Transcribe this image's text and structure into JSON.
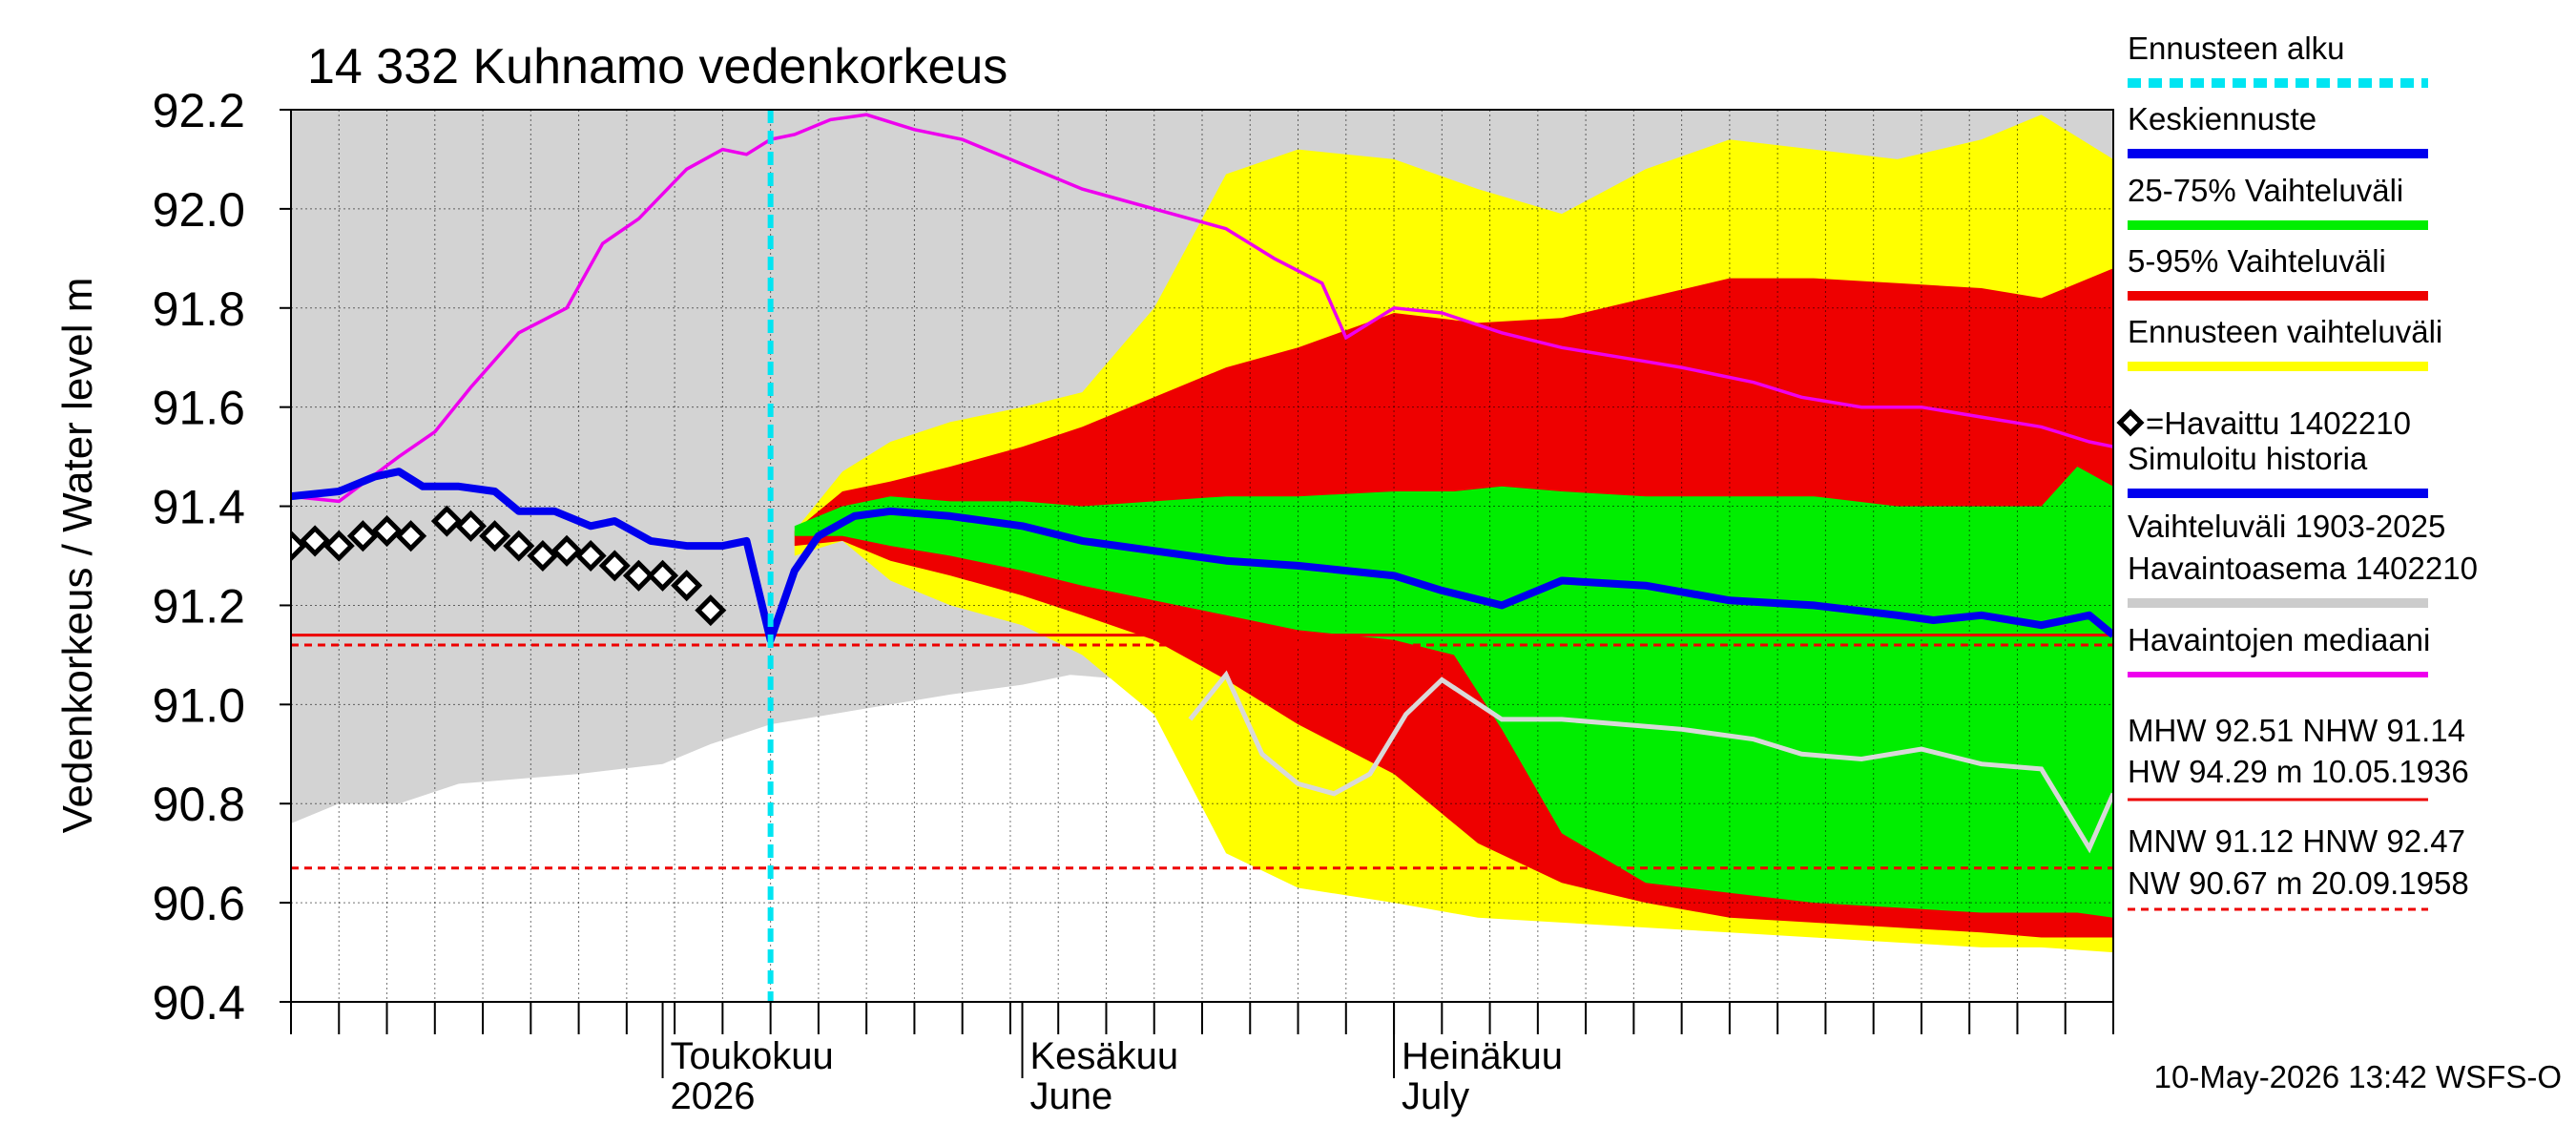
{
  "chart_data": {
    "type": "area",
    "title": "14 332 Kuhnamo vedenkorkeus",
    "ylabel": "Vedenkorkeus / Water level   m",
    "ylim": [
      90.4,
      92.2
    ],
    "yticks": [
      "90.4",
      "90.6",
      "90.8",
      "91.0",
      "91.2",
      "91.4",
      "91.6",
      "91.8",
      "92.0",
      "92.2"
    ],
    "xlim": [
      "2026-03-01",
      "2026-07-31"
    ],
    "grid": true,
    "month_labels": [
      {
        "date": "2026-04-01",
        "line1": "Toukokuu",
        "line2": "2026"
      },
      {
        "date": "2026-05-01",
        "line1": "Kesäkuu",
        "line2": "June"
      },
      {
        "date": "2026-06-01",
        "line1": "Heinäkuu",
        "line2": "July"
      }
    ],
    "forecast_start": "2026-04-10",
    "legend": [
      {
        "label": "Ennusteen alku",
        "color": "#00e5f2",
        "style": "dashed"
      },
      {
        "label": "Keskiennuste",
        "color": "#0000ee",
        "style": "solid"
      },
      {
        "label": "25-75% Vaihteluväli",
        "color": "#00ee00",
        "style": "solid"
      },
      {
        "label": "5-95% Vaihteluväli",
        "color": "#ee0000",
        "style": "solid"
      },
      {
        "label": "Ennusteen vaihteluväli",
        "color": "#ffff00",
        "style": "solid"
      },
      {
        "label": "=Havaittu 1402210",
        "color": "#000000",
        "style": "marker"
      },
      {
        "label": "Simuloitu historia",
        "color": "#0000ee",
        "style": "solid"
      },
      {
        "label": "Vaihteluväli 1903-2025",
        "color": "",
        "style": "none"
      },
      {
        "label": "Havaintoasema 1402210",
        "color": "#cccccc",
        "style": "solid"
      },
      {
        "label": "Havaintojen mediaani",
        "color": "#ee00ee",
        "style": "solid"
      }
    ],
    "stats": {
      "line1": "MHW  92.51 NHW  91.14",
      "line2": "HW  94.29 m 10.05.1936",
      "line3": "MNW  91.12 HNW  92.47",
      "line4": "NW  90.67 m 20.09.1958"
    },
    "reference_lines": [
      {
        "name": "NHW",
        "value": 91.14,
        "color": "#ee0000",
        "style": "solid"
      },
      {
        "name": "MNW",
        "value": 91.12,
        "color": "#ee0000",
        "style": "dashed"
      },
      {
        "name": "NW",
        "value": 90.67,
        "color": "#ee0000",
        "style": "dashed"
      }
    ],
    "history_range": {
      "x": [
        "2026-03-01",
        "2026-03-05",
        "2026-03-10",
        "2026-03-15",
        "2026-03-20",
        "2026-03-25",
        "2026-04-01",
        "2026-04-05",
        "2026-04-10",
        "2026-04-15",
        "2026-04-20",
        "2026-04-25",
        "2026-05-01",
        "2026-05-05",
        "2026-05-10",
        "2026-05-15",
        "2026-05-20",
        "2026-05-25",
        "2026-06-01",
        "2026-06-05",
        "2026-06-10",
        "2026-06-15",
        "2026-06-20",
        "2026-06-25",
        "2026-07-01",
        "2026-07-05",
        "2026-07-10",
        "2026-07-15",
        "2026-07-20",
        "2026-07-25",
        "2026-07-31"
      ],
      "upper": [
        92.2,
        92.2,
        92.2,
        92.2,
        92.2,
        92.2,
        92.2,
        92.2,
        92.2,
        92.2,
        92.2,
        92.2,
        92.2,
        92.2,
        92.2,
        92.2,
        92.2,
        92.2,
        92.2,
        92.2,
        92.2,
        92.2,
        92.2,
        92.2,
        92.2,
        92.2,
        92.2,
        92.2,
        92.2,
        92.2,
        92.2
      ],
      "lower": [
        90.76,
        90.8,
        90.8,
        90.84,
        90.85,
        90.86,
        90.88,
        90.92,
        90.96,
        90.98,
        91.0,
        91.02,
        91.04,
        91.06,
        91.05,
        91.06,
        91.08,
        91.06,
        91.05,
        91.02,
        90.99,
        90.97,
        90.95,
        90.94,
        90.93,
        90.92,
        90.91,
        90.9,
        90.9,
        90.89,
        90.88
      ]
    },
    "station_median_gray": {
      "x": [
        "2026-05-15",
        "2026-05-18",
        "2026-05-21",
        "2026-05-24",
        "2026-05-27",
        "2026-05-30",
        "2026-06-02",
        "2026-06-05",
        "2026-06-10",
        "2026-06-15",
        "2026-06-20",
        "2026-06-25",
        "2026-07-01",
        "2026-07-05",
        "2026-07-10",
        "2026-07-15",
        "2026-07-20",
        "2026-07-25",
        "2026-07-29",
        "2026-07-31"
      ],
      "values": [
        90.97,
        91.06,
        90.9,
        90.84,
        90.82,
        90.86,
        90.98,
        91.05,
        90.97,
        90.97,
        90.96,
        90.95,
        90.93,
        90.9,
        90.89,
        90.91,
        90.88,
        90.87,
        90.71,
        90.82
      ]
    },
    "band_full": {
      "x": [
        "2026-04-12",
        "2026-04-16",
        "2026-04-20",
        "2026-04-25",
        "2026-05-01",
        "2026-05-06",
        "2026-05-12",
        "2026-05-18",
        "2026-05-24",
        "2026-06-01",
        "2026-06-08",
        "2026-06-15",
        "2026-06-22",
        "2026-06-29",
        "2026-07-06",
        "2026-07-13",
        "2026-07-20",
        "2026-07-25",
        "2026-07-31"
      ],
      "upper": [
        91.35,
        91.47,
        91.53,
        91.57,
        91.6,
        91.63,
        91.8,
        92.07,
        92.12,
        92.1,
        92.04,
        91.99,
        92.08,
        92.14,
        92.12,
        92.1,
        92.14,
        92.19,
        92.1
      ],
      "lower": [
        91.3,
        91.33,
        91.25,
        91.2,
        91.16,
        91.1,
        90.98,
        90.7,
        90.63,
        90.6,
        90.57,
        90.56,
        90.55,
        90.54,
        90.53,
        90.52,
        90.51,
        90.51,
        90.5
      ]
    },
    "band_5_95": {
      "x": [
        "2026-04-12",
        "2026-04-16",
        "2026-04-20",
        "2026-04-25",
        "2026-05-01",
        "2026-05-06",
        "2026-05-12",
        "2026-05-18",
        "2026-05-24",
        "2026-06-01",
        "2026-06-08",
        "2026-06-15",
        "2026-06-22",
        "2026-06-29",
        "2026-07-06",
        "2026-07-13",
        "2026-07-20",
        "2026-07-25",
        "2026-07-31"
      ],
      "upper": [
        91.35,
        91.43,
        91.45,
        91.48,
        91.52,
        91.56,
        91.62,
        91.68,
        91.72,
        91.79,
        91.77,
        91.78,
        91.82,
        91.86,
        91.86,
        91.85,
        91.84,
        91.82,
        91.88
      ],
      "lower": [
        91.32,
        91.33,
        91.29,
        91.26,
        91.22,
        91.18,
        91.13,
        91.05,
        90.96,
        90.86,
        90.72,
        90.64,
        90.6,
        90.57,
        90.56,
        90.55,
        90.54,
        90.53,
        90.53
      ]
    },
    "band_25_75": {
      "x": [
        "2026-04-12",
        "2026-04-16",
        "2026-04-20",
        "2026-04-25",
        "2026-05-01",
        "2026-05-06",
        "2026-05-12",
        "2026-05-18",
        "2026-05-24",
        "2026-06-01",
        "2026-06-06",
        "2026-06-10",
        "2026-06-15",
        "2026-06-22",
        "2026-06-29",
        "2026-07-06",
        "2026-07-13",
        "2026-07-20",
        "2026-07-25",
        "2026-07-28",
        "2026-07-31"
      ],
      "upper": [
        91.36,
        91.4,
        91.42,
        91.41,
        91.41,
        91.4,
        91.41,
        91.42,
        91.42,
        91.43,
        91.43,
        91.44,
        91.43,
        91.42,
        91.42,
        91.42,
        91.4,
        91.4,
        91.4,
        91.48,
        91.44
      ],
      "lower": [
        91.34,
        91.34,
        91.32,
        91.3,
        91.27,
        91.24,
        91.21,
        91.18,
        91.15,
        91.13,
        91.1,
        90.95,
        90.74,
        90.64,
        90.62,
        90.6,
        90.59,
        90.58,
        90.58,
        90.58,
        90.57
      ]
    },
    "median_forecast": {
      "x": [
        "2026-03-01",
        "2026-03-05",
        "2026-03-08",
        "2026-03-10",
        "2026-03-12",
        "2026-03-15",
        "2026-03-18",
        "2026-03-20",
        "2026-03-23",
        "2026-03-26",
        "2026-03-28",
        "2026-03-31",
        "2026-04-03",
        "2026-04-06",
        "2026-04-08",
        "2026-04-10",
        "2026-04-12",
        "2026-04-14",
        "2026-04-17",
        "2026-04-20",
        "2026-04-25",
        "2026-05-01",
        "2026-05-06",
        "2026-05-12",
        "2026-05-18",
        "2026-05-24",
        "2026-06-01",
        "2026-06-05",
        "2026-06-10",
        "2026-06-15",
        "2026-06-22",
        "2026-06-29",
        "2026-07-06",
        "2026-07-13",
        "2026-07-16",
        "2026-07-20",
        "2026-07-25",
        "2026-07-29",
        "2026-07-31"
      ],
      "values": [
        91.42,
        91.43,
        91.46,
        91.47,
        91.44,
        91.44,
        91.43,
        91.39,
        91.39,
        91.36,
        91.37,
        91.33,
        91.32,
        91.32,
        91.33,
        91.13,
        91.27,
        91.34,
        91.38,
        91.39,
        91.38,
        91.36,
        91.33,
        91.31,
        91.29,
        91.28,
        91.26,
        91.23,
        91.2,
        91.25,
        91.24,
        91.21,
        91.2,
        91.18,
        91.17,
        91.18,
        91.16,
        91.18,
        91.14
      ]
    },
    "observation_median": {
      "x": [
        "2026-03-01",
        "2026-03-05",
        "2026-03-10",
        "2026-03-13",
        "2026-03-16",
        "2026-03-20",
        "2026-03-24",
        "2026-03-27",
        "2026-03-30",
        "2026-04-01",
        "2026-04-03",
        "2026-04-06",
        "2026-04-08",
        "2026-04-10",
        "2026-04-12",
        "2026-04-15",
        "2026-04-18",
        "2026-04-22",
        "2026-04-26",
        "2026-05-01",
        "2026-05-06",
        "2026-05-12",
        "2026-05-18",
        "2026-05-22",
        "2026-05-26",
        "2026-05-28",
        "2026-06-01",
        "2026-06-05",
        "2026-06-10",
        "2026-06-15",
        "2026-06-20",
        "2026-06-25",
        "2026-07-01",
        "2026-07-05",
        "2026-07-10",
        "2026-07-15",
        "2026-07-20",
        "2026-07-25",
        "2026-07-29",
        "2026-07-31"
      ],
      "values": [
        91.42,
        91.41,
        91.5,
        91.55,
        91.64,
        91.75,
        91.8,
        91.93,
        91.98,
        92.03,
        92.08,
        92.12,
        92.11,
        92.14,
        92.15,
        92.18,
        92.19,
        92.16,
        92.14,
        92.09,
        92.04,
        92.0,
        91.96,
        91.9,
        91.85,
        91.74,
        91.8,
        91.79,
        91.75,
        91.72,
        91.7,
        91.68,
        91.65,
        91.62,
        91.6,
        91.6,
        91.58,
        91.56,
        91.53,
        91.52
      ]
    },
    "observations": {
      "x": [
        "2026-03-01",
        "2026-03-03",
        "2026-03-05",
        "2026-03-07",
        "2026-03-09",
        "2026-03-11",
        "2026-03-14",
        "2026-03-16",
        "2026-03-18",
        "2026-03-20",
        "2026-03-22",
        "2026-03-24",
        "2026-03-26",
        "2026-03-28",
        "2026-03-30",
        "2026-04-01",
        "2026-04-03",
        "2026-04-05"
      ],
      "values": [
        91.32,
        91.33,
        91.32,
        91.34,
        91.35,
        91.34,
        91.37,
        91.36,
        91.34,
        91.32,
        91.3,
        91.31,
        91.3,
        91.28,
        91.26,
        91.26,
        91.24,
        91.19
      ]
    },
    "footer": "10-May-2026 13:42 WSFS-O"
  }
}
